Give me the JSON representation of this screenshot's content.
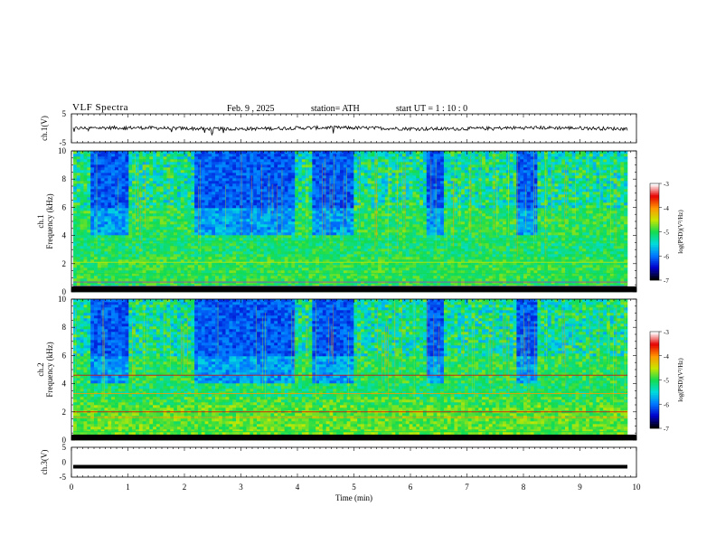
{
  "header": {
    "title": "VLF  Spectra",
    "date": "Feb. 9  , 2025",
    "station": "station= ATH",
    "start": "start  UT  =   1 : 10 : 0"
  },
  "chart_data": [
    {
      "panel": "ch1-waveform",
      "type": "line",
      "ylabel": "ch.1(V)",
      "ylim": [
        -5,
        5
      ],
      "y_ticks": [
        "5",
        "-5"
      ],
      "xlim": [
        0,
        10
      ],
      "trace_mean_V": 0,
      "trace_amplitude_V": 1.2
    },
    {
      "panel": "ch1-spectrogram",
      "type": "heatmap",
      "ylabel": "ch.1\nFrequency (kHz)",
      "ylim": [
        0,
        10
      ],
      "y_ticks": [
        "0",
        "2",
        "4",
        "6",
        "8",
        "10"
      ],
      "xlim": [
        0,
        10
      ],
      "colorbar": {
        "label": "log(PSD)(V²/Hz)",
        "range": [
          -7,
          -3
        ],
        "ticks": [
          "-3",
          "-4",
          "-5",
          "-6",
          "-7"
        ],
        "colors": [
          "#000000",
          "#0000cc",
          "#0078ff",
          "#00dcdc",
          "#14dc50",
          "#c8e600",
          "#ff9600",
          "#e60000",
          "#ffffff"
        ]
      },
      "active_intervals_min": [
        [
          0.3,
          0.95
        ],
        [
          2.1,
          3.9
        ],
        [
          4.2,
          4.9
        ],
        [
          6.2,
          6.5
        ],
        [
          7.8,
          8.2
        ]
      ]
    },
    {
      "panel": "ch2-spectrogram",
      "type": "heatmap",
      "ylabel": "ch.2\nFrequency (kHz)",
      "ylim": [
        0,
        10
      ],
      "y_ticks": [
        "0",
        "2",
        "4",
        "6",
        "8",
        "10"
      ],
      "xlim": [
        0,
        10
      ],
      "colorbar": {
        "label": "log(PSD)(V²/Hz)",
        "range": [
          -7,
          -3
        ],
        "ticks": [
          "-3",
          "-4",
          "-5",
          "-6",
          "-7"
        ],
        "colors": [
          "#000000",
          "#0000cc",
          "#0078ff",
          "#00dcdc",
          "#14dc50",
          "#c8e600",
          "#ff9600",
          "#e60000",
          "#ffffff"
        ]
      }
    },
    {
      "panel": "ch3-waveform",
      "type": "line",
      "ylabel": "ch.3(V)",
      "ylim": [
        -5,
        5
      ],
      "y_ticks": [
        "5",
        "0",
        "-5"
      ],
      "xlim": [
        0,
        10
      ],
      "x_ticks": [
        "0",
        "1",
        "2",
        "3",
        "4",
        "5",
        "6",
        "7",
        "8",
        "9",
        "10"
      ],
      "xlabel": "Time  (min)",
      "trace_level_V": -1.5
    }
  ]
}
